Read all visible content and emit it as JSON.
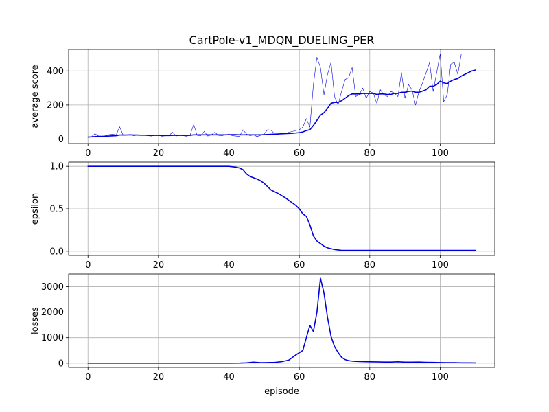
{
  "title": "CartPole-v1_MDQN_DUELING_PER",
  "colors": {
    "line": "#0000dd",
    "grid": "#b0b0b0",
    "axis": "#000000"
  },
  "chart_data": [
    {
      "type": "line",
      "name": "average-score",
      "title": "CartPole-v1_MDQN_DUELING_PER",
      "xlabel": "",
      "ylabel": "average score",
      "xlim": [
        -5.5,
        115.5
      ],
      "ylim": [
        -26,
        526
      ],
      "xticks": [
        0,
        20,
        40,
        60,
        80,
        100
      ],
      "yticks": [
        0,
        200,
        400
      ],
      "grid": true,
      "series": [
        {
          "style": "thin",
          "x": [
            0,
            1,
            2,
            3,
            4,
            5,
            6,
            7,
            8,
            9,
            10,
            11,
            12,
            13,
            14,
            15,
            16,
            17,
            18,
            19,
            20,
            21,
            22,
            23,
            24,
            25,
            26,
            27,
            28,
            29,
            30,
            31,
            32,
            33,
            34,
            35,
            36,
            37,
            38,
            39,
            40,
            41,
            42,
            43,
            44,
            45,
            46,
            47,
            48,
            49,
            50,
            51,
            52,
            53,
            54,
            55,
            56,
            57,
            58,
            59,
            60,
            61,
            62,
            63,
            64,
            65,
            66,
            67,
            68,
            69,
            70,
            71,
            72,
            73,
            74,
            75,
            76,
            77,
            78,
            79,
            80,
            81,
            82,
            83,
            84,
            85,
            86,
            87,
            88,
            89,
            90,
            91,
            92,
            93,
            94,
            95,
            96,
            97,
            98,
            99,
            100,
            101,
            102,
            103,
            104,
            105,
            106,
            107,
            108,
            109,
            110
          ],
          "y": [
            12,
            14,
            32,
            18,
            15,
            20,
            26,
            28,
            25,
            72,
            22,
            24,
            26,
            20,
            24,
            22,
            25,
            20,
            18,
            22,
            25,
            17,
            20,
            22,
            40,
            18,
            23,
            20,
            17,
            25,
            85,
            22,
            20,
            45,
            18,
            25,
            40,
            22,
            20,
            25,
            28,
            20,
            18,
            15,
            55,
            30,
            20,
            25,
            15,
            22,
            30,
            55,
            52,
            30,
            28,
            35,
            32,
            40,
            45,
            50,
            55,
            70,
            120,
            70,
            320,
            480,
            420,
            260,
            380,
            450,
            250,
            200,
            280,
            350,
            360,
            420,
            250,
            260,
            300,
            240,
            280,
            270,
            210,
            290,
            260,
            250,
            280,
            270,
            250,
            390,
            240,
            320,
            290,
            200,
            280,
            330,
            390,
            450,
            280,
            390,
            500,
            220,
            260,
            440,
            450,
            380,
            500,
            500,
            500,
            500,
            500
          ],
          "linewidth": 0.6
        },
        {
          "style": "thick",
          "x": [
            0,
            1,
            2,
            3,
            4,
            5,
            6,
            7,
            8,
            9,
            10,
            11,
            12,
            13,
            14,
            15,
            16,
            17,
            18,
            19,
            20,
            21,
            22,
            23,
            24,
            25,
            26,
            27,
            28,
            29,
            30,
            31,
            32,
            33,
            34,
            35,
            36,
            37,
            38,
            39,
            40,
            41,
            42,
            43,
            44,
            45,
            46,
            47,
            48,
            49,
            50,
            51,
            52,
            53,
            54,
            55,
            56,
            57,
            58,
            59,
            60,
            61,
            62,
            63,
            64,
            65,
            66,
            67,
            68,
            69,
            70,
            71,
            72,
            73,
            74,
            75,
            76,
            77,
            78,
            79,
            80,
            81,
            82,
            83,
            84,
            85,
            86,
            87,
            88,
            89,
            90,
            91,
            92,
            93,
            94,
            95,
            96,
            97,
            98,
            99,
            100,
            101,
            102,
            103,
            104,
            105,
            106,
            107,
            108,
            109,
            110
          ],
          "y": [
            12,
            13,
            15,
            16,
            16,
            17,
            18,
            19,
            20,
            24,
            24,
            24,
            25,
            24,
            24,
            23,
            23,
            22,
            22,
            22,
            22,
            21,
            21,
            21,
            22,
            22,
            22,
            22,
            22,
            22,
            25,
            25,
            25,
            25,
            25,
            25,
            25,
            25,
            25,
            25,
            26,
            26,
            26,
            25,
            25,
            25,
            25,
            25,
            25,
            25,
            26,
            27,
            28,
            29,
            30,
            31,
            32,
            33,
            34,
            36,
            38,
            42,
            50,
            55,
            80,
            110,
            140,
            155,
            180,
            210,
            215,
            215,
            225,
            240,
            255,
            265,
            265,
            265,
            268,
            268,
            268,
            268,
            262,
            265,
            265,
            262,
            262,
            268,
            268,
            275,
            275,
            280,
            282,
            275,
            275,
            282,
            290,
            310,
            310,
            320,
            340,
            330,
            325,
            340,
            350,
            355,
            370,
            380,
            390,
            400,
            405
          ],
          "linewidth": 1.6
        }
      ]
    },
    {
      "type": "line",
      "name": "epsilon",
      "xlabel": "",
      "ylabel": "epsilon",
      "xlim": [
        -5.5,
        115.5
      ],
      "ylim": [
        -0.05,
        1.05
      ],
      "xticks": [
        0,
        20,
        40,
        60,
        80,
        100
      ],
      "yticks": [
        0.0,
        0.5,
        1.0
      ],
      "ytick_labels": [
        "0.0",
        "0.5",
        "1.0"
      ],
      "grid": true,
      "series": [
        {
          "style": "thick",
          "x": [
            0,
            40,
            41,
            42,
            43,
            44,
            45,
            46,
            47,
            48,
            49,
            50,
            51,
            52,
            53,
            54,
            55,
            56,
            57,
            58,
            59,
            60,
            61,
            62,
            63,
            64,
            65,
            66,
            67,
            68,
            69,
            70,
            71,
            72,
            73,
            74,
            75,
            80,
            90,
            100,
            110
          ],
          "y": [
            1.0,
            1.0,
            0.995,
            0.99,
            0.98,
            0.96,
            0.91,
            0.88,
            0.865,
            0.85,
            0.83,
            0.8,
            0.76,
            0.72,
            0.7,
            0.68,
            0.655,
            0.63,
            0.6,
            0.57,
            0.54,
            0.5,
            0.44,
            0.41,
            0.31,
            0.18,
            0.12,
            0.09,
            0.06,
            0.04,
            0.03,
            0.02,
            0.015,
            0.01,
            0.01,
            0.01,
            0.01,
            0.01,
            0.01,
            0.01,
            0.01
          ],
          "linewidth": 1.6
        }
      ]
    },
    {
      "type": "line",
      "name": "losses",
      "xlabel": "episode",
      "ylabel": "losses",
      "xlim": [
        -5.5,
        115.5
      ],
      "ylim": [
        -166,
        3496
      ],
      "xticks": [
        0,
        20,
        40,
        60,
        80,
        100
      ],
      "yticks": [
        0,
        1000,
        2000,
        3000
      ],
      "grid": true,
      "series": [
        {
          "style": "thick",
          "x": [
            0,
            10,
            20,
            30,
            40,
            43,
            45,
            47,
            49,
            51,
            53,
            55,
            57,
            59,
            61,
            62,
            63,
            64,
            65,
            66,
            67,
            68,
            69,
            70,
            71,
            72,
            73,
            74,
            75,
            76,
            78,
            80,
            82,
            84,
            86,
            88,
            90,
            92,
            94,
            96,
            98,
            100,
            102,
            104,
            106,
            108,
            110
          ],
          "y": [
            0,
            0,
            0,
            0,
            0,
            5,
            15,
            40,
            20,
            25,
            30,
            60,
            120,
            320,
            500,
            1000,
            1480,
            1240,
            2000,
            3330,
            2750,
            1800,
            1050,
            650,
            420,
            230,
            140,
            100,
            80,
            70,
            60,
            55,
            50,
            45,
            45,
            55,
            40,
            40,
            45,
            35,
            30,
            25,
            20,
            20,
            15,
            15,
            10
          ],
          "linewidth": 1.6
        }
      ]
    }
  ]
}
